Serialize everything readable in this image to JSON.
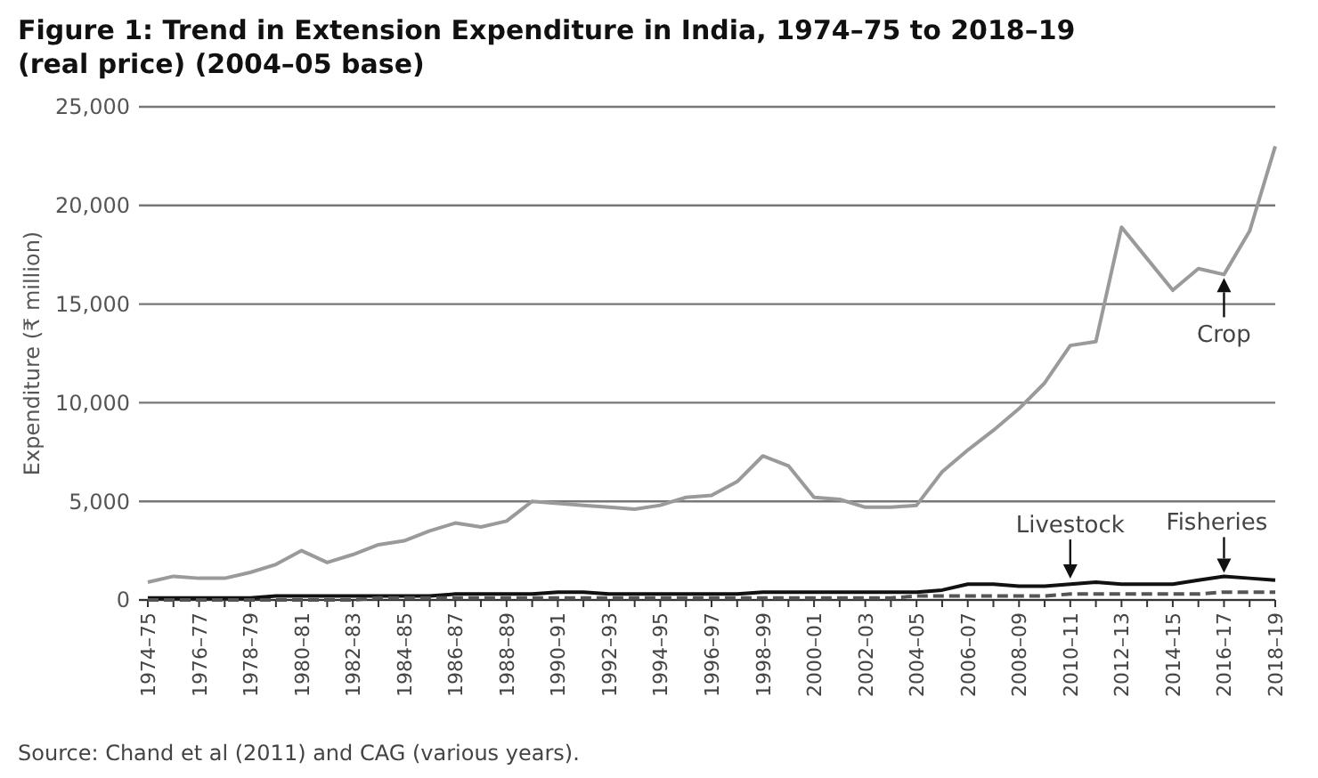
{
  "chart_data": {
    "type": "line",
    "title": "Figure 1: Trend in Extension Expenditure in India, 1974–75 to 2018–19 (real price) (2004–05 base)",
    "ylabel": "Expenditure (₹ million)",
    "categories": [
      "1974–75",
      null,
      "1976–77",
      null,
      "1978–79",
      null,
      "1980–81",
      null,
      "1982–83",
      null,
      "1984–85",
      null,
      "1986–87",
      null,
      "1988–89",
      null,
      "1990–91",
      null,
      "1992–93",
      null,
      "1994–95",
      null,
      "1996–97",
      null,
      "1998–99",
      null,
      "2000–01",
      null,
      "2002–03",
      null,
      "2004–05",
      null,
      "2006–07",
      null,
      "2008–09",
      null,
      "2010–11",
      null,
      "2012–13",
      null,
      "2014–15",
      null,
      "2016–17",
      null,
      "2018–19"
    ],
    "series": [
      {
        "color": "#9a9a9a",
        "values": [
          900,
          1200,
          1100,
          1100,
          1400,
          1800,
          2500,
          1900,
          2300,
          2800,
          3000,
          3500,
          3900,
          3700,
          4000,
          5000,
          4900,
          4800,
          4700,
          4600,
          4800,
          5200,
          5300,
          6000,
          7300,
          6800,
          5200,
          5100,
          4700,
          4700,
          4800,
          6500,
          7600,
          8600,
          9700,
          11000,
          12900,
          13100,
          18900,
          17300,
          15700,
          16800,
          16500,
          18700,
          23000
        ]
      },
      {
        "color": "#111111",
        "values": [
          100,
          100,
          100,
          100,
          100,
          200,
          200,
          200,
          200,
          200,
          200,
          200,
          300,
          300,
          300,
          300,
          400,
          400,
          300,
          300,
          300,
          300,
          300,
          300,
          400,
          400,
          400,
          400,
          400,
          400,
          400,
          500,
          800,
          800,
          700,
          700,
          800,
          900,
          800,
          800,
          800,
          1000,
          1200,
          1100,
          1000
        ]
      },
      {
        "color": "#555555",
        "line_style": "dashed",
        "values": [
          0,
          0,
          0,
          0,
          0,
          0,
          0,
          0,
          0,
          100,
          100,
          100,
          100,
          100,
          100,
          100,
          100,
          100,
          100,
          100,
          100,
          100,
          100,
          100,
          100,
          100,
          100,
          100,
          100,
          100,
          200,
          200,
          200,
          200,
          200,
          200,
          300,
          300,
          300,
          300,
          300,
          300,
          400,
          400,
          400
        ]
      }
    ],
    "ylim": [
      0,
      25000
    ],
    "yticks": [
      0,
      {
        "value": 5000,
        "label": "5,000"
      },
      {
        "value": 10000,
        "label": "10,000"
      },
      {
        "value": 15000,
        "label": "15,000"
      },
      {
        "value": 20000,
        "label": "20,000"
      },
      {
        "value": 25000,
        "label": "25,000"
      }
    ],
    "grid": "y",
    "marker": "none",
    "line_style": "solid",
    "annotations": [
      {
        "text": "Crop",
        "x": "2016–17",
        "y": 16500
      },
      {
        "text": "Livestock",
        "x": "2010–11",
        "y": 900
      },
      {
        "text": "Fisheries",
        "x": "2016–17",
        "y": 1200
      },
      "Source: Chand et al (2011) and CAG (various years)."
    ]
  }
}
